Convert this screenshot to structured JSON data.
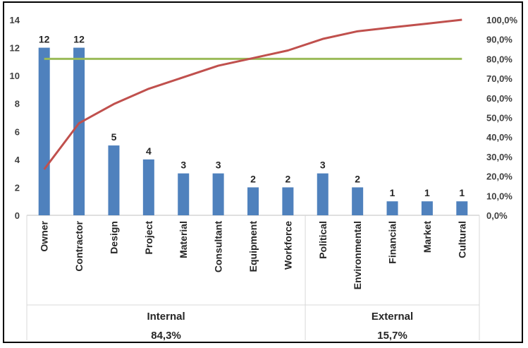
{
  "chart_data": {
    "type": "bar",
    "title": "",
    "categories": [
      "Owner",
      "Contractor",
      "Design",
      "Project",
      "Material",
      "Consultant",
      "Equipment",
      "Workforce",
      "Political",
      "Environmental",
      "Financial",
      "Market",
      "Cultural"
    ],
    "series": [
      {
        "type": "bar",
        "axis": "left",
        "values": [
          12,
          12,
          5,
          4,
          3,
          3,
          2,
          2,
          3,
          2,
          1,
          1,
          1
        ],
        "data_labels": [
          "12",
          "12",
          "5",
          "4",
          "3",
          "3",
          "2",
          "2",
          "3",
          "2",
          "1",
          "1",
          "1"
        ],
        "color": "#4f81bd"
      },
      {
        "type": "line",
        "axis": "right",
        "values": [
          23.5,
          47.1,
          56.9,
          64.7,
          70.6,
          76.5,
          80.4,
          84.3,
          90.2,
          94.1,
          96.1,
          98.0,
          100.0
        ],
        "color": "#c0504d"
      },
      {
        "type": "line",
        "axis": "right",
        "values": [
          80,
          80,
          80,
          80,
          80,
          80,
          80,
          80,
          80,
          80,
          80,
          80,
          80
        ],
        "color": "#9bbb59"
      }
    ],
    "y_left": {
      "ylim": [
        0,
        14
      ],
      "ticks": [
        "0",
        "2",
        "4",
        "6",
        "8",
        "10",
        "12",
        "14"
      ]
    },
    "y_right": {
      "ylim": [
        0,
        100
      ],
      "ticks": [
        "0,0%",
        "10,0%",
        "20,0%",
        "30,0%",
        "40,0%",
        "50,0%",
        "60,0%",
        "70,0%",
        "80,0%",
        "90,0%",
        "100,0%"
      ]
    },
    "groups": [
      {
        "label": "Internal",
        "share": "84,3%",
        "count": 8
      },
      {
        "label": "External",
        "share": "15,7%",
        "count": 5
      }
    ],
    "grid": false,
    "legend": "none"
  }
}
